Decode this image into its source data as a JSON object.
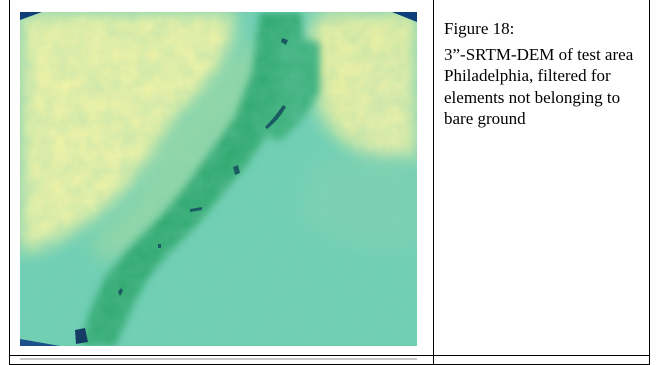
{
  "figure": {
    "title": "Figure 18:",
    "description": "3”-SRTM-DEM of test area Philadelphia, filtered for elements not belonging to bare ground"
  },
  "colors": {
    "lowland": "#2fa66c",
    "midland": "#62c9b0",
    "upland": "#f7f6a4",
    "water": "#0e3f7a"
  }
}
